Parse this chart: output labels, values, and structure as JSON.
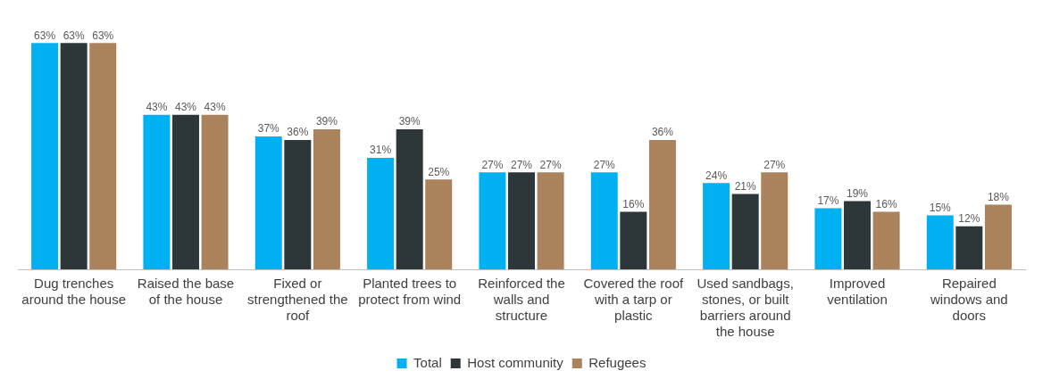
{
  "chart_data": {
    "type": "bar",
    "categories": [
      "Dug trenches around the house",
      "Raised the base of the house",
      "Fixed or strengthened the roof",
      "Planted trees to protect from wind",
      "Reinforced the walls and structure",
      "Covered the roof with a tarp or plastic",
      "Used sandbags, stones, or built barriers around the house",
      "Improved ventilation",
      "Repaired windows and doors"
    ],
    "series": [
      {
        "name": "Total",
        "color": "#00b0f0",
        "values": [
          63,
          43,
          37,
          31,
          27,
          27,
          24,
          17,
          15
        ],
        "value_labels": [
          "63%",
          "43%",
          "37%",
          "31%",
          "27%",
          "27%",
          "24%",
          "17%",
          "15%"
        ]
      },
      {
        "name": "Host community",
        "color": "#2d3638",
        "values": [
          63,
          43,
          36,
          39,
          27,
          16,
          21,
          19,
          12
        ],
        "value_labels": [
          "63%",
          "43%",
          "36%",
          "39%",
          "27%",
          "16%",
          "21%",
          "19%",
          "12%"
        ]
      },
      {
        "name": "Refugees",
        "color": "#aa825c",
        "values": [
          63,
          43,
          39,
          25,
          27,
          36,
          27,
          16,
          18
        ],
        "value_labels": [
          "63%",
          "43%",
          "39%",
          "25%",
          "27%",
          "36%",
          "27%",
          "16%",
          "18%"
        ]
      }
    ],
    "legend": "bottom",
    "grid": false
  }
}
